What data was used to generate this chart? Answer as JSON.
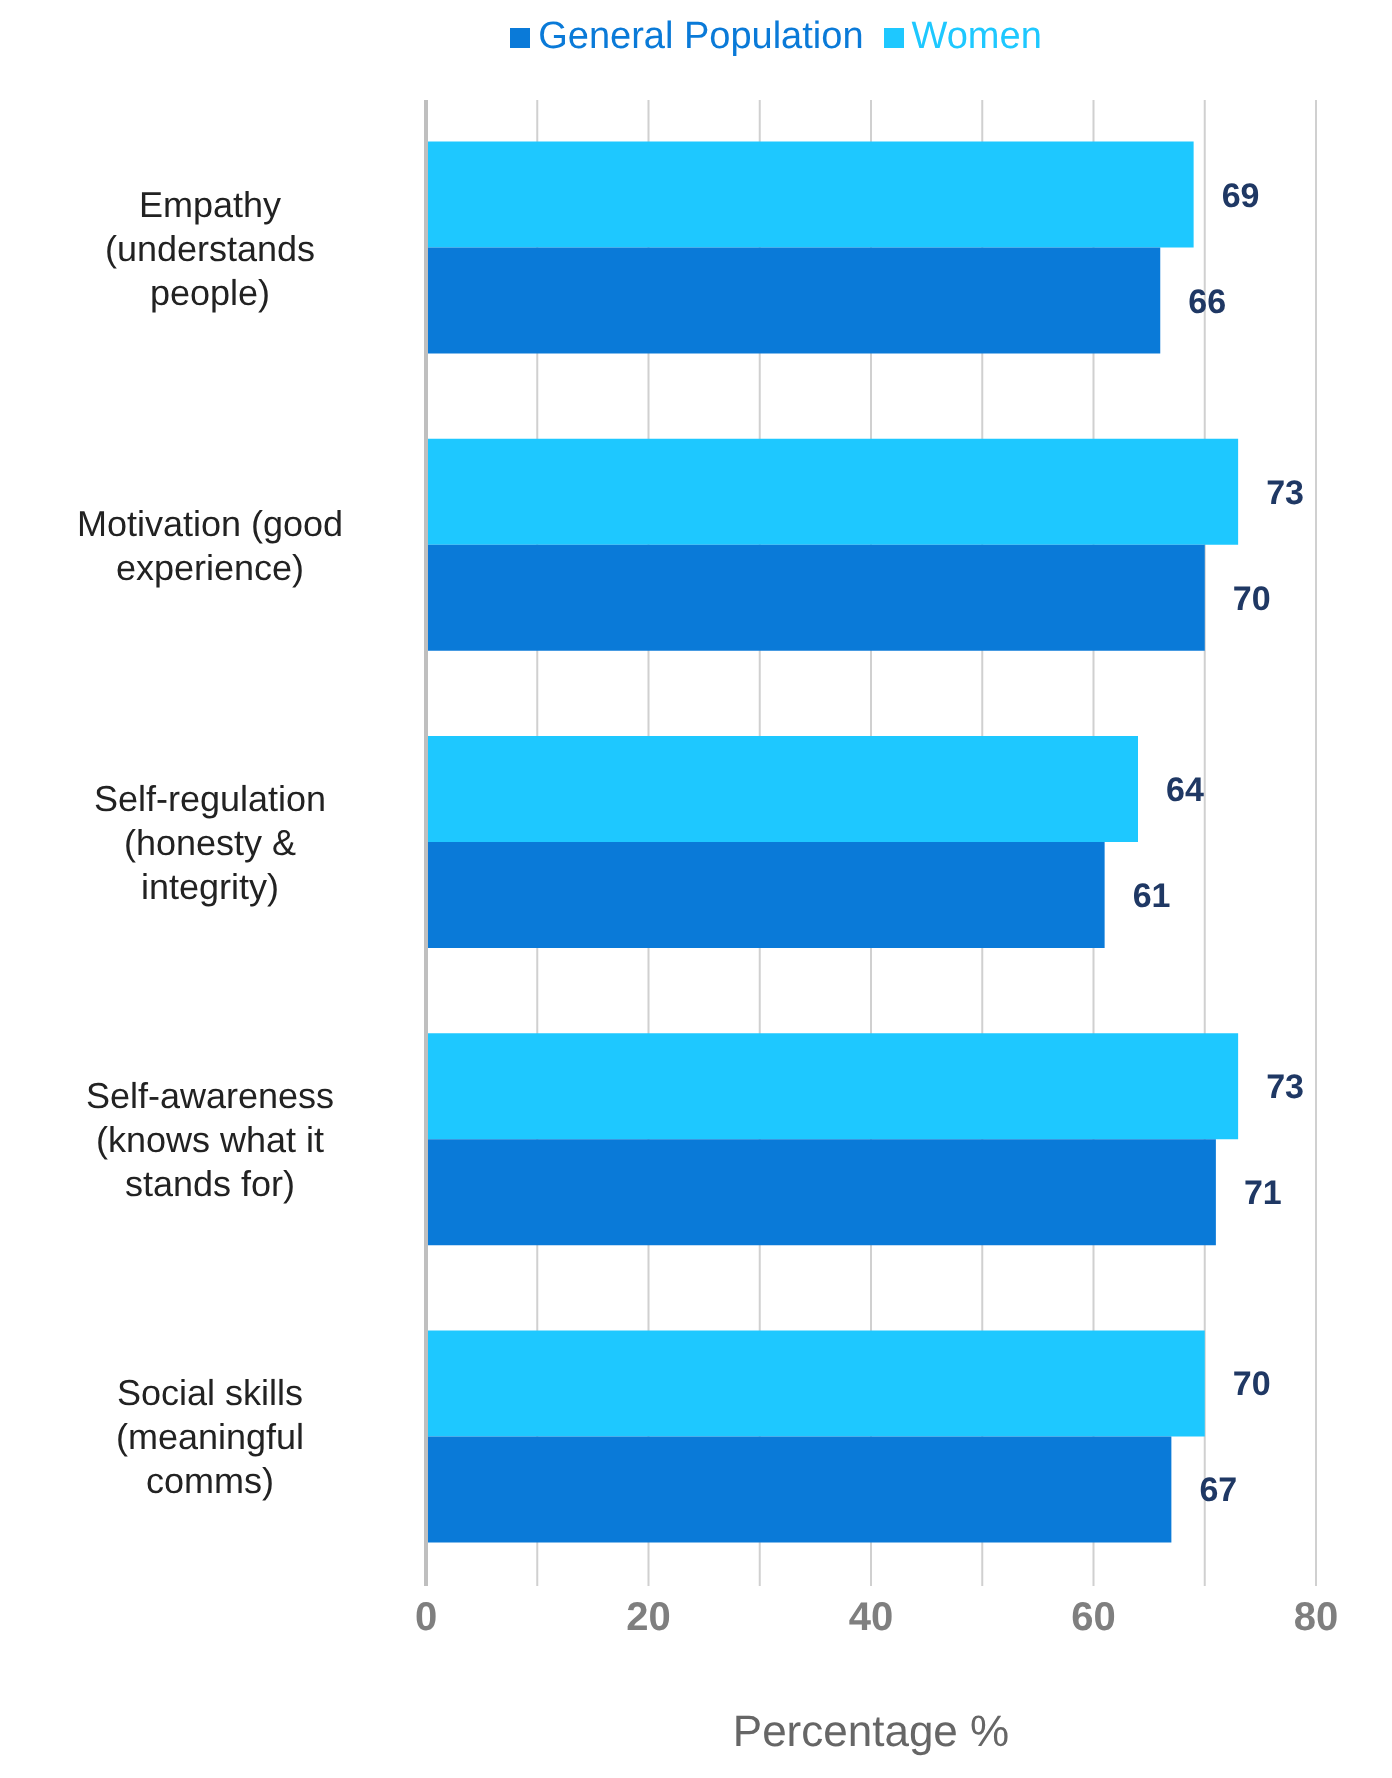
{
  "chart_data": {
    "type": "bar",
    "orientation": "horizontal",
    "xlabel": "Percentage %",
    "categories": [
      "Empathy (understands people)",
      "Motivation (good experience)",
      "Self-regulation (honesty & integrity)",
      "Self-awareness (knows what it stands for)",
      "Social skills (meaningful comms)"
    ],
    "series": [
      {
        "name": "Women",
        "color": "#1ec8ff",
        "values": [
          69,
          73,
          64,
          73,
          70
        ]
      },
      {
        "name": "General Population",
        "color": "#0a7ad8",
        "values": [
          66,
          70,
          61,
          71,
          67
        ]
      }
    ],
    "xlim": [
      0,
      80
    ],
    "xticks": [
      0,
      {
        "value": 10,
        "label": null
      },
      20,
      {
        "value": 30,
        "label": null
      },
      40,
      {
        "value": 50,
        "label": null
      },
      60,
      {
        "value": 70,
        "label": null
      },
      80
    ],
    "grid": "x",
    "legend": "top",
    "data_labels": true
  }
}
